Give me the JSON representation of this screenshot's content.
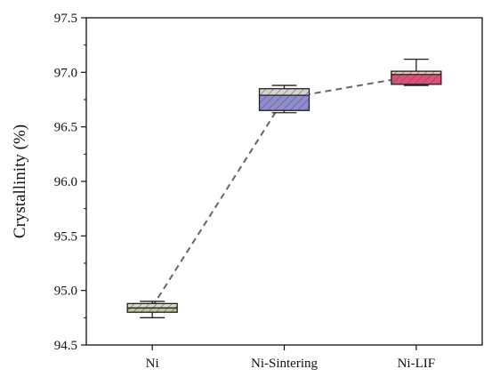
{
  "chart_data": {
    "type": "box",
    "ylabel": "Crystallinity (%)",
    "ylim": [
      94.5,
      97.5
    ],
    "yticks": [
      "94.5",
      "95.0",
      "95.5",
      "96.0",
      "96.5",
      "97.0",
      "97.5"
    ],
    "categories": [
      "Ni",
      "Ni-Sintering",
      "Ni-LIF"
    ],
    "boxes": [
      {
        "category": "Ni",
        "min": 94.75,
        "q1": 94.8,
        "median": 94.84,
        "q3": 94.88,
        "max": 94.9,
        "mean": 94.85,
        "colors": [
          "#d8dcc0",
          "#b9c49a"
        ]
      },
      {
        "category": "Ni-Sintering",
        "min": 96.63,
        "q1": 96.65,
        "median": 96.79,
        "q3": 96.85,
        "max": 96.88,
        "mean": 96.76,
        "colors": [
          "#d4d4d4",
          "#8f8cd0"
        ]
      },
      {
        "category": "Ni-LIF",
        "min": 96.88,
        "q1": 96.89,
        "median": 96.98,
        "q3": 97.01,
        "max": 97.12,
        "mean": 96.97,
        "colors": [
          "#e9c9b0",
          "#e0507a"
        ]
      }
    ],
    "mean_line": {
      "style": "dashed",
      "color": "#666666"
    },
    "grid": false,
    "legend": false
  }
}
